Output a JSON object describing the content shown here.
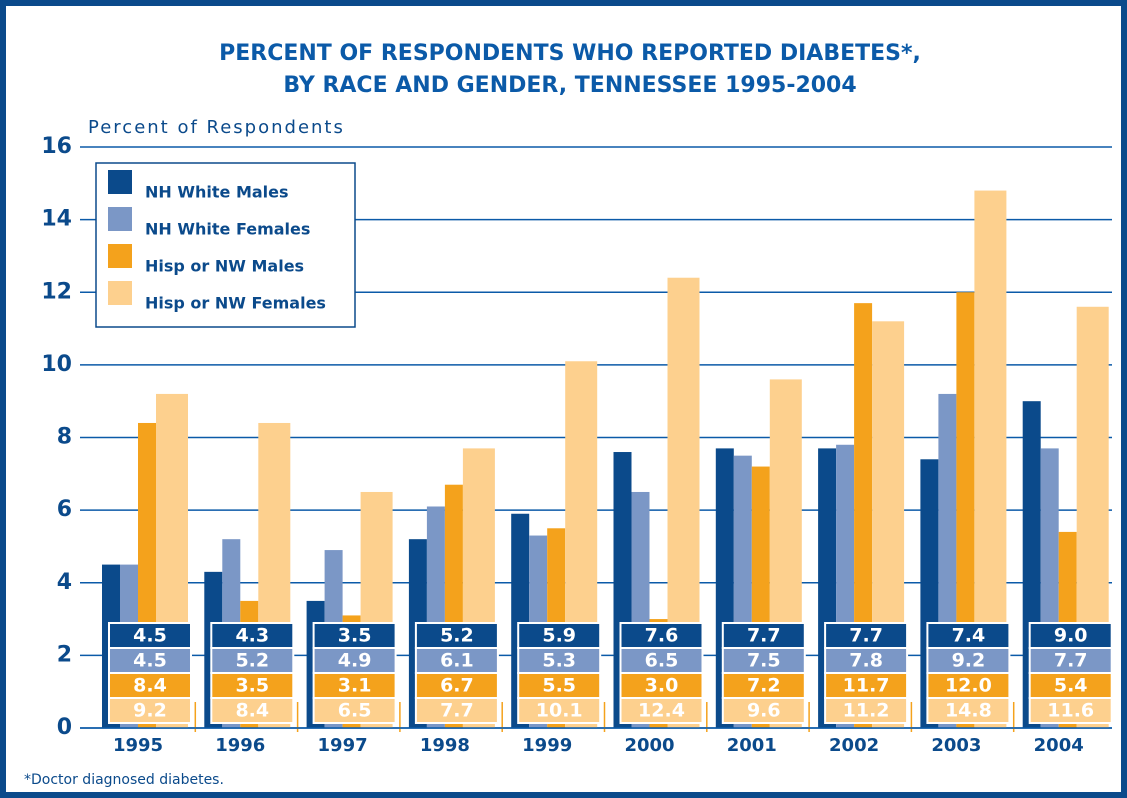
{
  "chart_data": {
    "type": "bar",
    "title": [
      "PERCENT OF RESPONDENTS WHO REPORTED DIABETES*,",
      "BY RACE AND GENDER, TENNESSEE 1995-2004"
    ],
    "y_label": "Percent of Respondents",
    "footnote": "*Doctor diagnosed diabetes.",
    "categories": [
      "1995",
      "1996",
      "1997",
      "1998",
      "1999",
      "2000",
      "2001",
      "2002",
      "2003",
      "2004"
    ],
    "series": [
      {
        "name": "NH White Males",
        "color": "#0b4a8b",
        "values": [
          4.5,
          4.3,
          3.5,
          5.2,
          5.9,
          7.6,
          7.7,
          7.7,
          7.4,
          9.0
        ],
        "value_labels": [
          "4.5",
          "4.3",
          "3.5",
          "5.2",
          "5.9",
          "7.6",
          "7.7",
          "7.7",
          "7.4",
          "9.0"
        ]
      },
      {
        "name": "NH White Females",
        "color": "#7b97c6",
        "values": [
          4.5,
          5.2,
          4.9,
          6.1,
          5.3,
          6.5,
          7.5,
          7.8,
          9.2,
          7.7
        ],
        "value_labels": [
          "4.5",
          "5.2",
          "4.9",
          "6.1",
          "5.3",
          "6.5",
          "7.5",
          "7.8",
          "9.2",
          "7.7"
        ]
      },
      {
        "name": "Hisp or NW Males",
        "color": "#f4a21c",
        "values": [
          8.4,
          3.5,
          3.1,
          6.7,
          5.5,
          3.0,
          7.2,
          11.7,
          12.0,
          5.4
        ],
        "value_labels": [
          "8.4",
          "3.5",
          "3.1",
          "6.7",
          "5.5",
          "3.0",
          "7.2",
          "11.7",
          "12.0",
          "5.4"
        ]
      },
      {
        "name": "Hisp or NW Females",
        "color": "#fdd08e",
        "values": [
          9.2,
          8.4,
          6.5,
          7.7,
          10.1,
          12.4,
          9.6,
          11.2,
          14.8,
          11.6
        ],
        "value_labels": [
          "9.2",
          "8.4",
          "6.5",
          "7.7",
          "10.1",
          "12.4",
          "9.6",
          "11.2",
          "14.8",
          "11.6"
        ]
      }
    ],
    "ylim": [
      0,
      16
    ],
    "yticks": [
      0,
      2,
      4,
      6,
      8,
      10,
      12,
      14,
      16
    ],
    "grid": true
  }
}
